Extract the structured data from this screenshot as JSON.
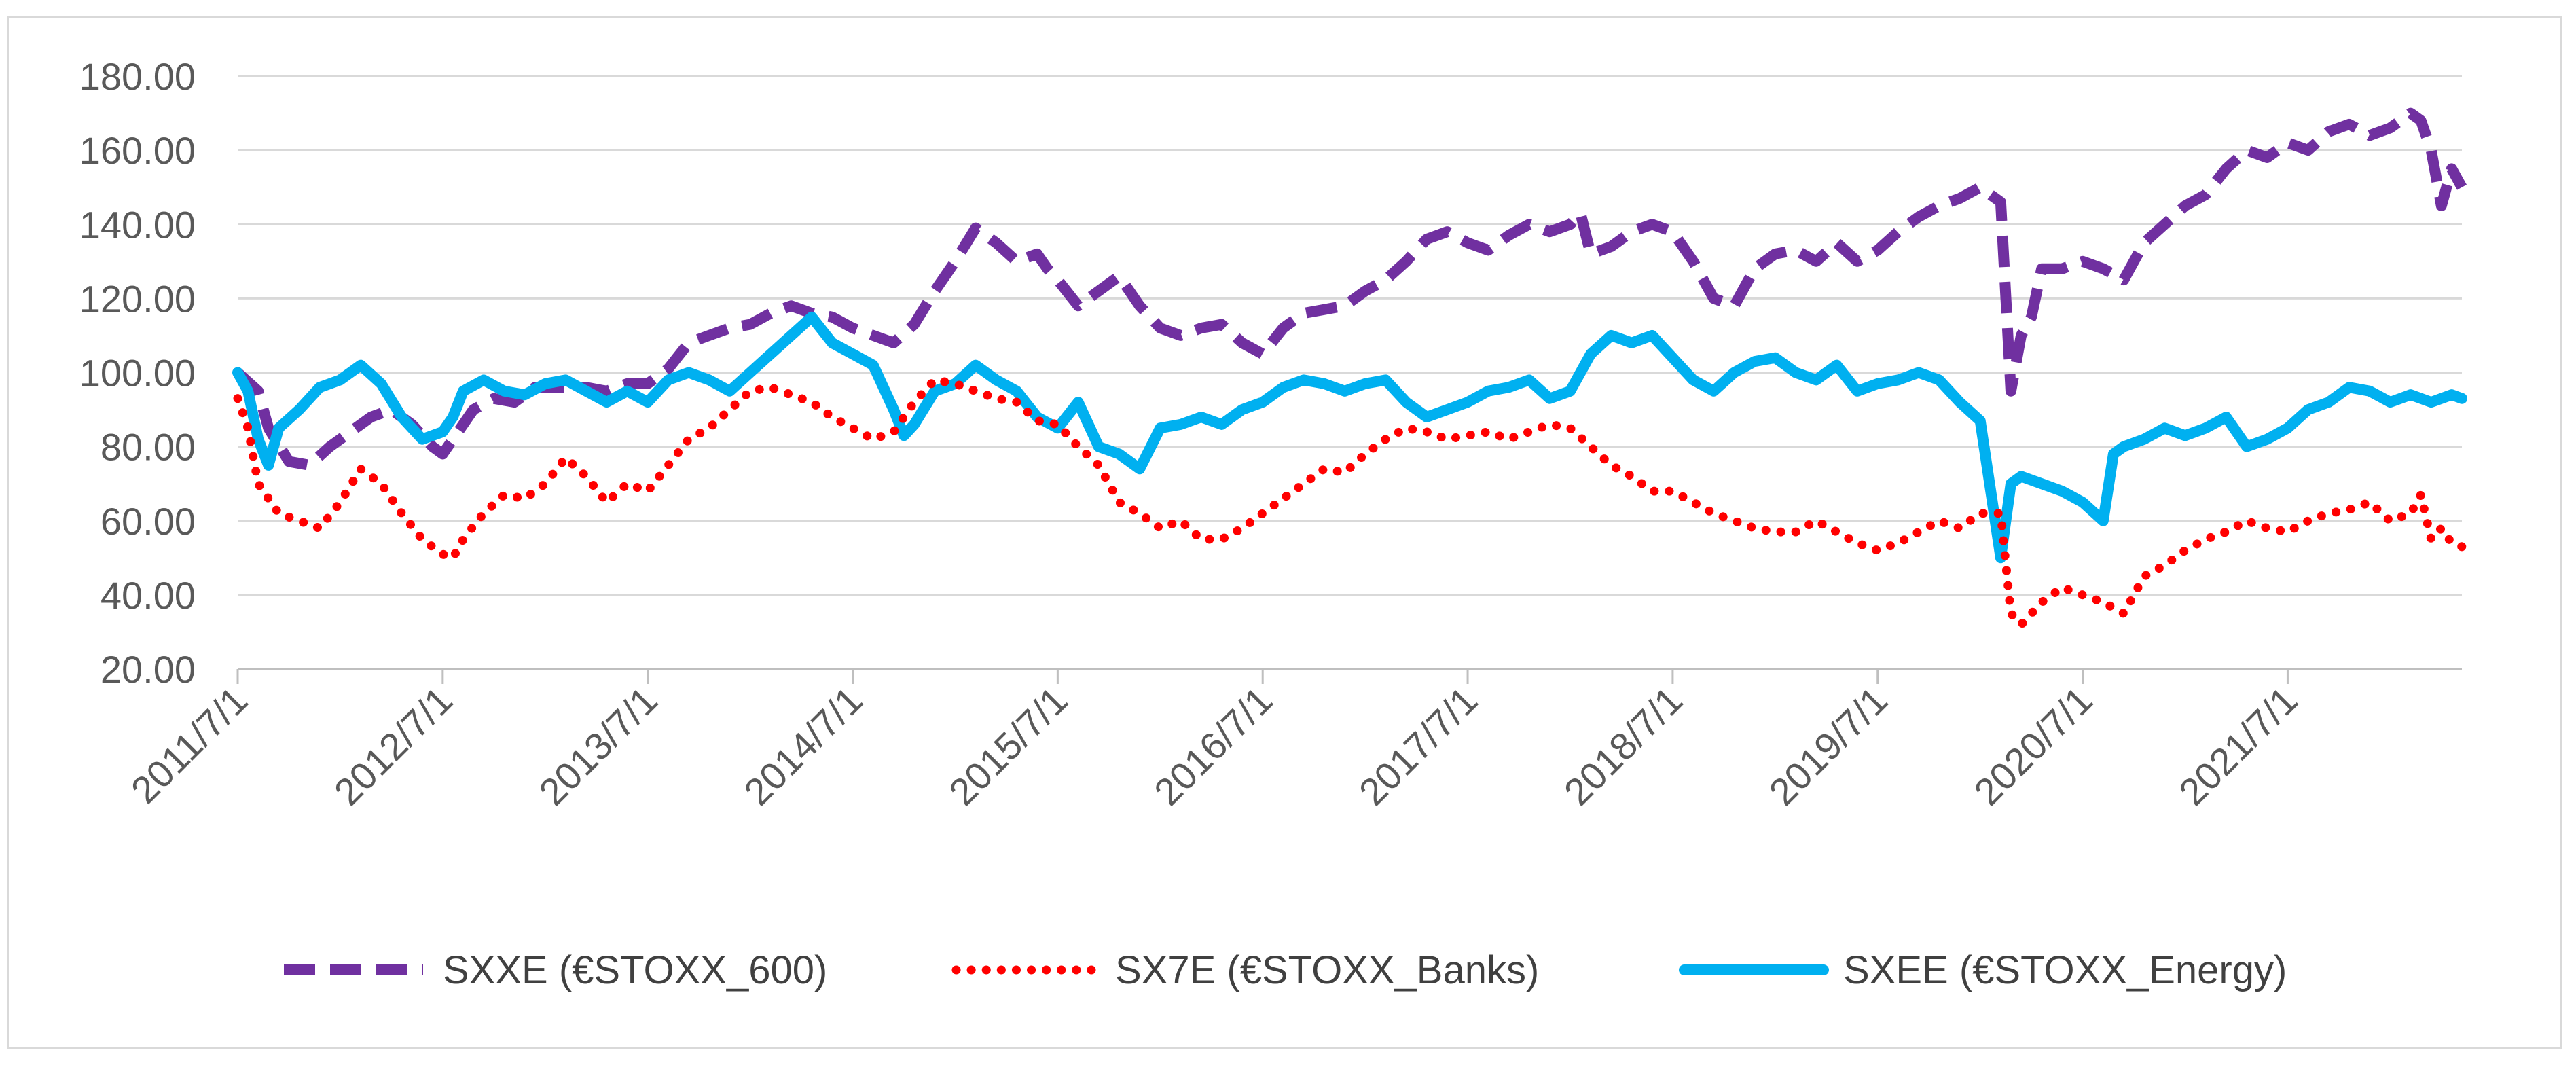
{
  "chart_data": {
    "type": "line",
    "title": "",
    "xlabel": "",
    "ylabel": "",
    "ylim": [
      20,
      180
    ],
    "y_ticks": [
      "20.00",
      "40.00",
      "60.00",
      "80.00",
      "100.00",
      "120.00",
      "140.00",
      "160.00",
      "180.00"
    ],
    "x_tick_labels": [
      "2011/7/1",
      "2012/7/1",
      "2013/7/1",
      "2014/7/1",
      "2015/7/1",
      "2016/7/1",
      "2017/7/1",
      "2018/7/1",
      "2019/7/1",
      "2020/7/1",
      "2021/7/1"
    ],
    "x_range_years": [
      2011.5,
      2022.35
    ],
    "grid": "horizontal",
    "legend_position": "bottom",
    "series": [
      {
        "name": "SXXE (€STOXX_600)",
        "color": "#7030a0",
        "style": "dashed",
        "x": [
          2011.5,
          2011.6,
          2011.65,
          2011.75,
          2011.85,
          2011.95,
          2012.05,
          2012.15,
          2012.25,
          2012.35,
          2012.45,
          2012.5,
          2012.55,
          2012.65,
          2012.75,
          2012.85,
          2012.95,
          2013.1,
          2013.2,
          2013.3,
          2013.4,
          2013.5,
          2013.6,
          2013.7,
          2013.8,
          2013.9,
          2014.0,
          2014.1,
          2014.2,
          2014.3,
          2014.4,
          2014.5,
          2014.6,
          2014.7,
          2014.8,
          2014.9,
          2015.0,
          2015.1,
          2015.2,
          2015.3,
          2015.4,
          2015.45,
          2015.5,
          2015.6,
          2015.7,
          2015.8,
          2015.9,
          2016.0,
          2016.1,
          2016.2,
          2016.3,
          2016.4,
          2016.5,
          2016.6,
          2016.7,
          2016.8,
          2016.9,
          2017.0,
          2017.1,
          2017.2,
          2017.3,
          2017.4,
          2017.5,
          2017.6,
          2017.7,
          2017.8,
          2017.9,
          2018.0,
          2018.05,
          2018.1,
          2018.2,
          2018.3,
          2018.4,
          2018.5,
          2018.6,
          2018.7,
          2018.8,
          2018.9,
          2019.0,
          2019.1,
          2019.2,
          2019.3,
          2019.4,
          2019.5,
          2019.6,
          2019.7,
          2019.8,
          2019.9,
          2020.0,
          2020.1,
          2020.15,
          2020.2,
          2020.25,
          2020.3,
          2020.4,
          2020.5,
          2020.6,
          2020.7,
          2020.8,
          2020.9,
          2021.0,
          2021.1,
          2021.2,
          2021.3,
          2021.4,
          2021.5,
          2021.6,
          2021.7,
          2021.8,
          2021.9,
          2022.0,
          2022.1,
          2022.15,
          2022.2,
          2022.25,
          2022.3,
          2022.35
        ],
        "values": [
          100,
          95,
          85,
          76,
          75,
          80,
          84,
          88,
          90,
          86,
          80,
          78,
          82,
          90,
          93,
          92,
          96,
          96,
          96,
          95,
          97,
          97,
          101,
          108,
          110,
          112,
          113,
          116,
          118,
          116,
          115,
          112,
          110,
          108,
          113,
          122,
          130,
          139,
          135,
          130,
          132,
          128,
          125,
          118,
          122,
          126,
          118,
          112,
          110,
          112,
          113,
          108,
          105,
          112,
          116,
          117,
          118,
          122,
          125,
          130,
          136,
          138,
          135,
          133,
          137,
          140,
          138,
          140,
          143,
          132,
          134,
          138,
          140,
          138,
          130,
          120,
          118,
          128,
          132,
          133,
          130,
          135,
          130,
          133,
          138,
          142,
          145,
          147,
          150,
          146,
          95,
          110,
          115,
          128,
          128,
          130,
          128,
          125,
          135,
          140,
          145,
          148,
          155,
          160,
          158,
          162,
          160,
          165,
          167,
          164,
          166,
          170,
          168,
          160,
          145,
          155,
          150
        ]
      },
      {
        "name": "SX7E (€STOXX_Banks)",
        "color": "#ff0000",
        "style": "dotted",
        "x": [
          2011.5,
          2011.55,
          2011.6,
          2011.7,
          2011.8,
          2011.9,
          2012.0,
          2012.1,
          2012.2,
          2012.3,
          2012.4,
          2012.5,
          2012.55,
          2012.6,
          2012.7,
          2012.8,
          2012.9,
          2013.0,
          2013.1,
          2013.2,
          2013.3,
          2013.4,
          2013.5,
          2013.6,
          2013.7,
          2013.8,
          2013.9,
          2014.0,
          2014.1,
          2014.2,
          2014.3,
          2014.4,
          2014.5,
          2014.6,
          2014.7,
          2014.8,
          2014.9,
          2015.0,
          2015.1,
          2015.2,
          2015.3,
          2015.4,
          2015.5,
          2015.6,
          2015.7,
          2015.8,
          2015.9,
          2016.0,
          2016.1,
          2016.2,
          2016.3,
          2016.4,
          2016.5,
          2016.6,
          2016.7,
          2016.8,
          2016.9,
          2017.0,
          2017.1,
          2017.2,
          2017.3,
          2017.4,
          2017.5,
          2017.6,
          2017.7,
          2017.8,
          2017.9,
          2018.0,
          2018.1,
          2018.2,
          2018.3,
          2018.4,
          2018.5,
          2018.6,
          2018.7,
          2018.8,
          2018.9,
          2019.0,
          2019.1,
          2019.2,
          2019.3,
          2019.4,
          2019.5,
          2019.6,
          2019.7,
          2019.8,
          2019.9,
          2020.0,
          2020.1,
          2020.15,
          2020.2,
          2020.3,
          2020.4,
          2020.5,
          2020.6,
          2020.7,
          2020.8,
          2020.9,
          2021.0,
          2021.1,
          2021.2,
          2021.3,
          2021.4,
          2021.5,
          2021.6,
          2021.7,
          2021.8,
          2021.9,
          2022.0,
          2022.1,
          2022.15,
          2022.2,
          2022.25,
          2022.3,
          2022.35
        ],
        "values": [
          93,
          85,
          70,
          62,
          60,
          58,
          65,
          74,
          70,
          62,
          55,
          51,
          50,
          55,
          62,
          67,
          66,
          70,
          77,
          72,
          65,
          70,
          68,
          75,
          82,
          85,
          90,
          95,
          96,
          94,
          92,
          88,
          85,
          82,
          84,
          92,
          98,
          97,
          95,
          93,
          92,
          87,
          86,
          80,
          75,
          65,
          62,
          58,
          60,
          55,
          55,
          58,
          62,
          66,
          70,
          74,
          73,
          78,
          82,
          85,
          84,
          82,
          83,
          84,
          82,
          84,
          86,
          85,
          80,
          75,
          72,
          68,
          68,
          65,
          62,
          60,
          58,
          57,
          57,
          60,
          57,
          54,
          52,
          54,
          57,
          60,
          58,
          62,
          62,
          35,
          32,
          38,
          42,
          40,
          38,
          35,
          45,
          48,
          52,
          55,
          57,
          60,
          58,
          57,
          60,
          62,
          63,
          65,
          60,
          62,
          67,
          55,
          58,
          54,
          53
        ]
      },
      {
        "name": "SXEE (€STOXX_Energy)",
        "color": "#00b0f0",
        "style": "solid",
        "x": [
          2011.5,
          2011.55,
          2011.6,
          2011.65,
          2011.7,
          2011.8,
          2011.9,
          2012.0,
          2012.1,
          2012.2,
          2012.3,
          2012.4,
          2012.5,
          2012.55,
          2012.6,
          2012.7,
          2012.8,
          2012.9,
          2013.0,
          2013.1,
          2013.2,
          2013.3,
          2013.4,
          2013.5,
          2013.6,
          2013.7,
          2013.8,
          2013.9,
          2014.0,
          2014.1,
          2014.2,
          2014.3,
          2014.4,
          2014.5,
          2014.6,
          2014.7,
          2014.75,
          2014.8,
          2014.9,
          2015.0,
          2015.1,
          2015.2,
          2015.3,
          2015.4,
          2015.5,
          2015.6,
          2015.7,
          2015.8,
          2015.9,
          2016.0,
          2016.1,
          2016.2,
          2016.3,
          2016.4,
          2016.5,
          2016.6,
          2016.7,
          2016.8,
          2016.9,
          2017.0,
          2017.1,
          2017.2,
          2017.3,
          2017.4,
          2017.5,
          2017.6,
          2017.7,
          2017.8,
          2017.9,
          2018.0,
          2018.1,
          2018.2,
          2018.3,
          2018.4,
          2018.5,
          2018.6,
          2018.7,
          2018.8,
          2018.9,
          2019.0,
          2019.1,
          2019.2,
          2019.3,
          2019.4,
          2019.5,
          2019.6,
          2019.7,
          2019.8,
          2019.9,
          2020.0,
          2020.1,
          2020.15,
          2020.2,
          2020.3,
          2020.4,
          2020.5,
          2020.6,
          2020.65,
          2020.7,
          2020.8,
          2020.9,
          2021.0,
          2021.1,
          2021.2,
          2021.3,
          2021.4,
          2021.5,
          2021.6,
          2021.7,
          2021.8,
          2021.9,
          2022.0,
          2022.1,
          2022.2,
          2022.3,
          2022.35
        ],
        "values": [
          100,
          95,
          82,
          75,
          85,
          90,
          96,
          98,
          102,
          97,
          88,
          82,
          84,
          88,
          95,
          98,
          95,
          94,
          97,
          98,
          95,
          92,
          95,
          92,
          98,
          100,
          98,
          95,
          100,
          105,
          110,
          115,
          108,
          105,
          102,
          90,
          83,
          86,
          95,
          97,
          102,
          98,
          95,
          88,
          85,
          92,
          80,
          78,
          74,
          85,
          86,
          88,
          86,
          90,
          92,
          96,
          98,
          97,
          95,
          97,
          98,
          92,
          88,
          90,
          92,
          95,
          96,
          98,
          93,
          95,
          105,
          110,
          108,
          110,
          104,
          98,
          95,
          100,
          103,
          104,
          100,
          98,
          102,
          95,
          97,
          98,
          100,
          98,
          92,
          87,
          50,
          70,
          72,
          70,
          68,
          65,
          60,
          78,
          80,
          82,
          85,
          83,
          85,
          88,
          80,
          82,
          85,
          90,
          92,
          96,
          95,
          92,
          94,
          92,
          94,
          93
        ]
      }
    ]
  }
}
